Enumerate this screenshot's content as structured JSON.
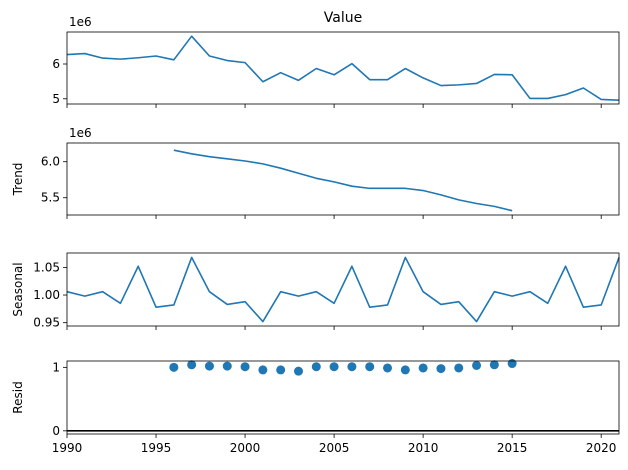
{
  "chart_data": {
    "type": "line",
    "title": "Value",
    "x": [
      1990,
      1991,
      1992,
      1993,
      1994,
      1995,
      1996,
      1997,
      1998,
      1999,
      2000,
      2001,
      2002,
      2003,
      2004,
      2005,
      2006,
      2007,
      2008,
      2009,
      2010,
      2011,
      2012,
      2013,
      2014,
      2015,
      2016,
      2017,
      2018,
      2019,
      2020,
      2021
    ],
    "xlim": [
      1990,
      2021
    ],
    "xticks": [
      1990,
      1995,
      2000,
      2005,
      2010,
      2015,
      2020
    ],
    "line_color": "#1f77b4",
    "panels": [
      {
        "name": "observed",
        "kind": "line",
        "ylabel": "",
        "offset_label": "1e6",
        "ylim": [
          4.85,
          6.92
        ],
        "yticks": [
          5,
          6
        ],
        "ytick_labels": [
          "5",
          "6"
        ],
        "values": [
          6.27,
          6.3,
          6.17,
          6.14,
          6.18,
          6.23,
          6.12,
          6.8,
          6.23,
          6.1,
          6.04,
          5.49,
          5.75,
          5.53,
          5.87,
          5.69,
          6.01,
          5.55,
          5.55,
          5.87,
          5.6,
          5.38,
          5.4,
          5.44,
          5.7,
          5.69,
          5.01,
          5.01,
          5.12,
          5.31,
          4.98,
          4.96
        ]
      },
      {
        "name": "trend",
        "kind": "line",
        "ylabel": "Trend",
        "offset_label": "1e6",
        "ylim": [
          5.26,
          6.26
        ],
        "yticks": [
          5.5,
          6.0
        ],
        "ytick_labels": [
          "5.5",
          "6.0"
        ],
        "values": [
          null,
          null,
          null,
          null,
          null,
          null,
          6.16,
          6.11,
          6.07,
          6.04,
          6.01,
          5.97,
          5.91,
          5.84,
          5.77,
          5.72,
          5.66,
          5.63,
          5.63,
          5.63,
          5.6,
          5.54,
          5.47,
          5.42,
          5.38,
          5.32,
          null,
          null,
          null,
          null,
          null,
          null
        ]
      },
      {
        "name": "seasonal",
        "kind": "line",
        "ylabel": "Seasonal",
        "offset_label": "",
        "ylim": [
          0.944,
          1.076
        ],
        "yticks": [
          0.95,
          1.0,
          1.05
        ],
        "ytick_labels": [
          "0.95",
          "1.00",
          "1.05"
        ],
        "values": [
          1.006,
          0.998,
          1.006,
          0.985,
          1.052,
          0.978,
          0.982,
          1.068,
          1.006,
          0.983,
          0.988,
          0.952,
          1.006,
          0.998,
          1.006,
          0.985,
          1.052,
          0.978,
          0.982,
          1.068,
          1.006,
          0.983,
          0.988,
          0.952,
          1.006,
          0.998,
          1.006,
          0.985,
          1.052,
          0.978,
          0.982,
          1.068
        ]
      },
      {
        "name": "resid",
        "kind": "scatter",
        "ylabel": "Resid",
        "offset_label": "",
        "ylim": [
          -0.05,
          1.1
        ],
        "yticks": [
          0,
          1
        ],
        "ytick_labels": [
          "0",
          "1"
        ],
        "baseline": 0,
        "values": [
          null,
          null,
          null,
          null,
          null,
          null,
          1.0,
          1.04,
          1.02,
          1.02,
          1.01,
          0.96,
          0.96,
          0.94,
          1.01,
          1.01,
          1.01,
          1.01,
          0.99,
          0.96,
          0.99,
          0.98,
          0.99,
          1.03,
          1.04,
          1.06,
          null,
          null,
          null,
          null,
          null,
          null
        ]
      }
    ]
  }
}
